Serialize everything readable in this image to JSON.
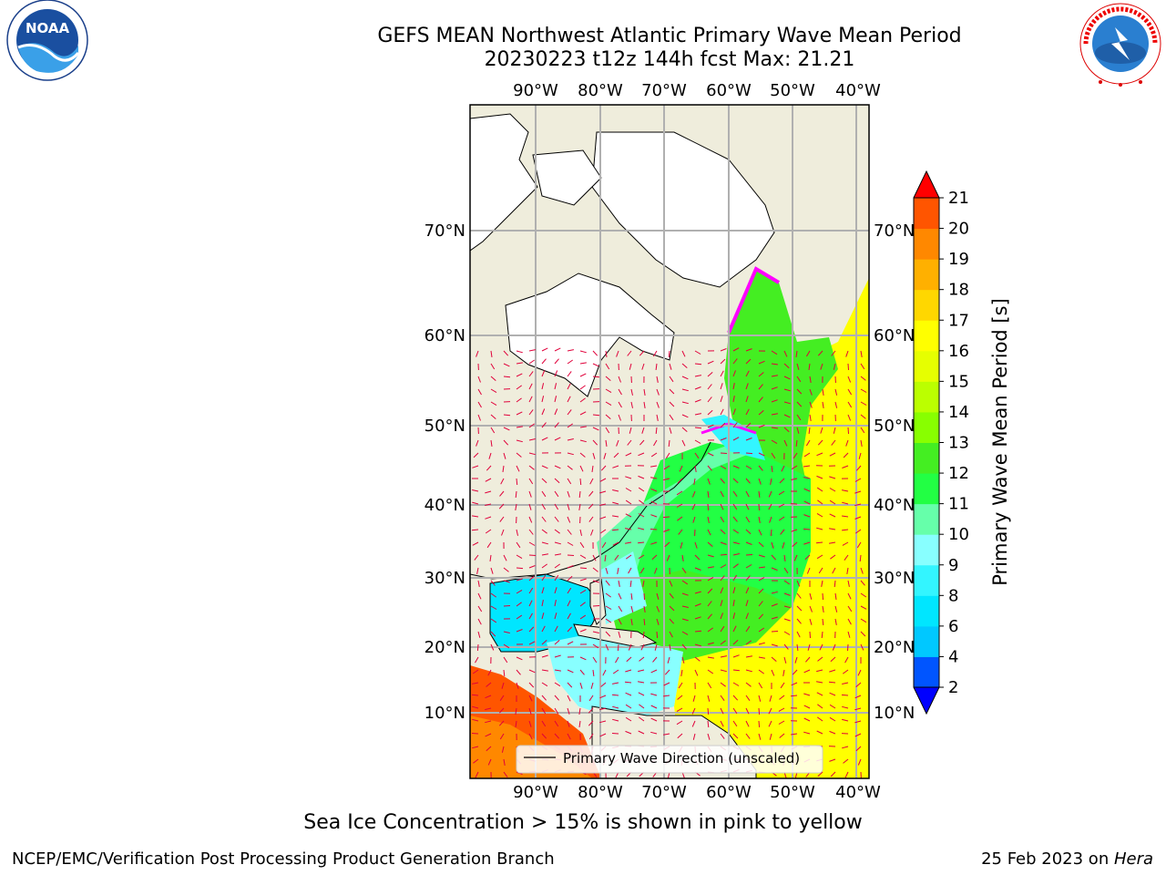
{
  "header": {
    "title_line1": "GEFS MEAN Northwest Atlantic Primary Wave Mean Period",
    "title_line2": "20230223 t12z 144h fcst   Max: 21.21"
  },
  "logos": {
    "left_text": "NOAA",
    "left_ring_text": "NATIONAL OCEANIC AND ATMOSPHERIC ADMINISTRATION · U.S. DEPARTMENT OF COMMERCE",
    "right_ring_text": "NATIONAL WEATHER SERVICE"
  },
  "map": {
    "lon_labels": [
      "90°W",
      "80°W",
      "70°W",
      "60°W",
      "50°W",
      "40°W"
    ],
    "lat_labels": [
      "70°N",
      "60°N",
      "50°N",
      "40°N",
      "30°N",
      "20°N",
      "10°N"
    ],
    "legend_label": "Primary Wave Direction (unscaled)"
  },
  "colorbar": {
    "label": "Primary Wave Mean Period [s]",
    "ticks": [
      "2",
      "4",
      "6",
      "8",
      "9",
      "10",
      "11",
      "12",
      "13",
      "14",
      "15",
      "16",
      "17",
      "18",
      "19",
      "20",
      "21"
    ],
    "colors": [
      "#0055ff",
      "#00c8ff",
      "#00e6ff",
      "#33f5ff",
      "#88ffff",
      "#66ffaa",
      "#22ff44",
      "#44ee22",
      "#88ff00",
      "#bbff00",
      "#e6ff00",
      "#ffff00",
      "#ffd700",
      "#ffb000",
      "#ff8800",
      "#ff5500",
      "#ff2200"
    ],
    "under_color": "#0000ff",
    "over_color": "#ff0000"
  },
  "footer": {
    "sea_ice_note": "Sea Ice Concentration > 15% is shown in pink to yellow",
    "branch": "NCEP/EMC/Verification Post Processing Product Generation Branch",
    "date_prefix": "25 Feb 2023 on ",
    "machine": "Hera"
  }
}
